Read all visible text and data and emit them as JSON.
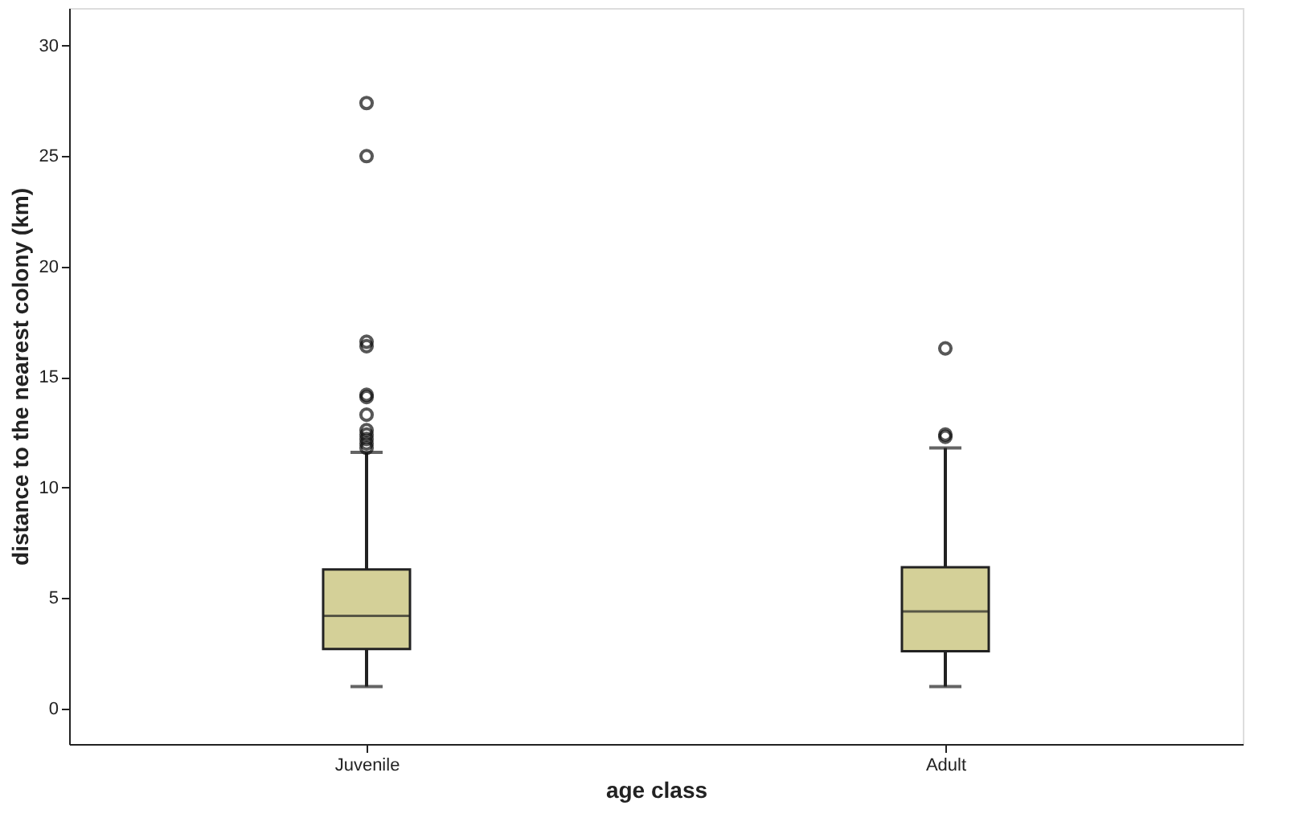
{
  "chart_data": {
    "type": "box",
    "xlabel": "age class",
    "ylabel": "distance to the nearest colony (km)",
    "categories": [
      "Juvenile",
      "Adult"
    ],
    "ylim": [
      -1.6,
      31.7
    ],
    "yticks": [
      0,
      5,
      10,
      15,
      20,
      25,
      30
    ],
    "grid": false,
    "color": "#d4d098",
    "boxes": [
      {
        "low": 1.0,
        "q1": 2.7,
        "median": 4.2,
        "q3": 6.3,
        "high": 11.6,
        "outliers": [
          11.8,
          12.0,
          12.2,
          12.4,
          12.6,
          13.3,
          14.1,
          14.2,
          16.4,
          16.6,
          25.0,
          27.4
        ]
      },
      {
        "low": 1.0,
        "q1": 2.6,
        "median": 4.4,
        "q3": 6.4,
        "high": 11.8,
        "outliers": [
          12.3,
          12.4,
          16.3
        ]
      }
    ]
  }
}
